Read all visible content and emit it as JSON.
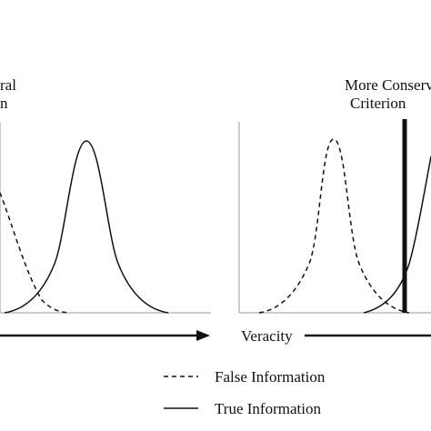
{
  "left_panel": {
    "criterion_label_line1": "ral",
    "criterion_label_line2": "n",
    "axis_label": ""
  },
  "right_panel": {
    "criterion_label_line1": "More Conserv",
    "criterion_label_line2": "Criterion",
    "axis_label": "Veracity"
  },
  "legend": {
    "items": [
      {
        "label": "False Information",
        "line_style": "dashed"
      },
      {
        "label": "True Information",
        "line_style": "solid"
      }
    ]
  },
  "colors": {
    "stroke": "#111111",
    "background": "#ffffff"
  }
}
